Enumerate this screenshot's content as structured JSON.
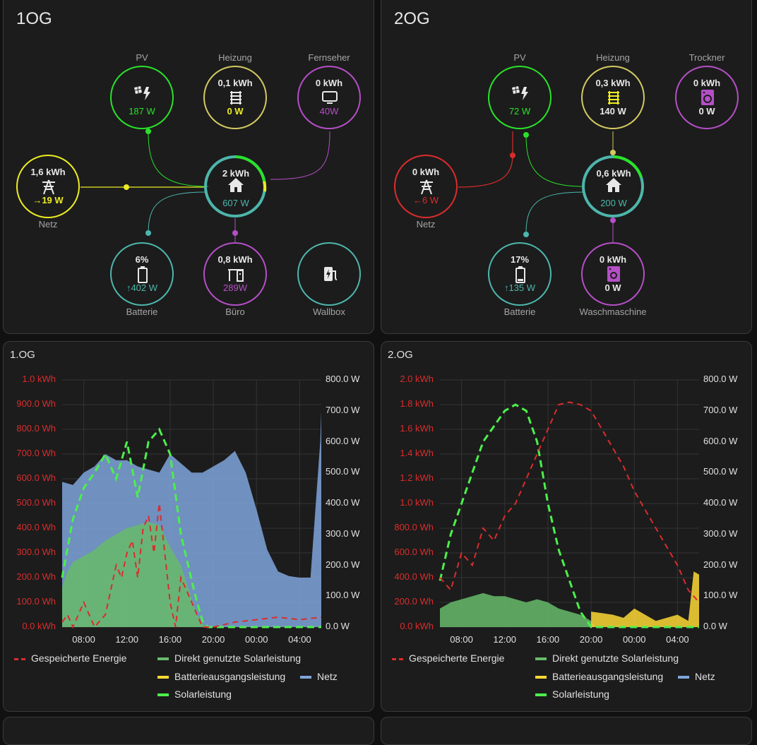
{
  "colors": {
    "pv": "#29e229",
    "grid": "#ecec23",
    "grid_import": "#db2c2c",
    "home": "#4db6ac",
    "battery": "#4db6ac",
    "heizung": "#d3c961",
    "device": "#b44fc6",
    "stored": "#db2c2c",
    "direct": "#66bb6a",
    "batt_out": "#fdd835",
    "netz": "#7fa5dc",
    "solar": "#4cef4c"
  },
  "og1": {
    "title": "1OG",
    "pv": {
      "label": "PV",
      "icon": "solar-panel-icon",
      "value": "187 W"
    },
    "heizung": {
      "label": "Heizung",
      "icon": "radiator-icon",
      "energy": "0,1 kWh",
      "power": "0 W"
    },
    "fernseher": {
      "label": "Fernseher",
      "icon": "tv-icon",
      "energy": "0 kWh",
      "power": "40W"
    },
    "netz": {
      "label": "Netz",
      "icon": "transmission-tower-icon",
      "energy": "1,6 kWh",
      "power": "→19 W"
    },
    "home": {
      "icon": "home-icon",
      "energy": "2 kWh",
      "power": "607 W"
    },
    "batterie": {
      "label": "Batterie",
      "icon": "battery-icon",
      "percent": "6%",
      "power": "↑402 W"
    },
    "buero": {
      "label": "Büro",
      "icon": "desk-icon",
      "energy": "0,8 kWh",
      "power": "289W"
    },
    "wallbox": {
      "label": "Wallbox",
      "icon": "ev-station-icon"
    }
  },
  "og2": {
    "title": "2OG",
    "pv": {
      "label": "PV",
      "icon": "solar-panel-icon",
      "value": "72 W"
    },
    "heizung": {
      "label": "Heizung",
      "icon": "radiator-icon",
      "energy": "0,3 kWh",
      "power": "140 W"
    },
    "trockner": {
      "label": "Trockner",
      "icon": "tumble-dryer-icon",
      "energy": "0 kWh",
      "power": "0 W"
    },
    "netz": {
      "label": "Netz",
      "icon": "transmission-tower-icon",
      "energy": "0 kWh",
      "power": "←6 W"
    },
    "home": {
      "icon": "home-icon",
      "energy": "0,6 kWh",
      "power": "200 W"
    },
    "batterie": {
      "label": "Batterie",
      "icon": "battery-icon",
      "percent": "17%",
      "power": "↑135 W"
    },
    "wasch": {
      "label": "Waschmaschine",
      "icon": "washing-machine-icon",
      "energy": "0 kWh",
      "power": "0 W"
    }
  },
  "legend": {
    "stored": "Gespeicherte Energie",
    "direct": "Direkt genutzte Solarleistung",
    "batt_out": "Batterieausgangsleistung",
    "netz": "Netz",
    "solar": "Solarleistung"
  },
  "chart_data": [
    {
      "title": "1.OG",
      "type": "area",
      "left_axis": {
        "unit": "kWh",
        "ylim": [
          0,
          1.0
        ],
        "ticks": [
          "0.0 kWh",
          "100.0 Wh",
          "200.0 Wh",
          "300.0 Wh",
          "400.0 Wh",
          "500.0 Wh",
          "600.0 Wh",
          "700.0 Wh",
          "800.0 Wh",
          "900.0 Wh",
          "1.0 kWh"
        ]
      },
      "right_axis": {
        "unit": "W",
        "ylim": [
          0,
          800
        ],
        "ticks": [
          "0.0 W",
          "100.0 W",
          "200.0 W",
          "300.0 W",
          "400.0 W",
          "500.0 W",
          "600.0 W",
          "700.0 W",
          "800.0 W"
        ]
      },
      "x_ticks": [
        "08:00",
        "12:00",
        "16:00",
        "20:00",
        "00:00",
        "04:00"
      ],
      "x_hours": [
        6,
        30
      ],
      "series": [
        {
          "name": "Netz",
          "type": "area",
          "axis": "right",
          "x": [
            6,
            7,
            8,
            9,
            10,
            11,
            12,
            13,
            14,
            15,
            16,
            17,
            18,
            19,
            20,
            21,
            22,
            23,
            24,
            25,
            26,
            27,
            28,
            29,
            29.9,
            30
          ],
          "values": [
            470,
            460,
            500,
            520,
            560,
            540,
            540,
            520,
            510,
            500,
            560,
            530,
            500,
            500,
            520,
            540,
            570,
            500,
            380,
            250,
            180,
            165,
            160,
            160,
            600,
            700
          ]
        },
        {
          "name": "Direkt genutzte Solarleistung",
          "type": "area",
          "axis": "right",
          "x": [
            6,
            6.5,
            7,
            8,
            9,
            10,
            11,
            12,
            13,
            14,
            15,
            16,
            17,
            18,
            18.5,
            19,
            19.3,
            30
          ],
          "values": [
            130,
            180,
            210,
            230,
            250,
            280,
            300,
            320,
            330,
            340,
            330,
            260,
            200,
            90,
            40,
            10,
            0,
            0
          ]
        },
        {
          "name": "Solarleistung",
          "type": "line",
          "axis": "right",
          "x": [
            6,
            7,
            8,
            9,
            10,
            11,
            12,
            13,
            14,
            15,
            16,
            17,
            18,
            18.5,
            19,
            19.5,
            30
          ],
          "values": [
            160,
            350,
            450,
            500,
            560,
            480,
            600,
            420,
            600,
            640,
            560,
            300,
            150,
            80,
            20,
            0,
            0
          ]
        },
        {
          "name": "Gespeicherte Energie",
          "type": "line",
          "axis": "left",
          "x": [
            6,
            6.5,
            7,
            8,
            9,
            10,
            11,
            11.5,
            12,
            12.5,
            13,
            13.5,
            14,
            14.5,
            15,
            15.5,
            16,
            16.5,
            17,
            17.5,
            18,
            18.5,
            19,
            20,
            22,
            24,
            26,
            28,
            30
          ],
          "values": [
            0.02,
            0.05,
            0.0,
            0.1,
            0.0,
            0.05,
            0.25,
            0.2,
            0.3,
            0.35,
            0.2,
            0.4,
            0.45,
            0.3,
            0.5,
            0.3,
            0.1,
            0.0,
            0.2,
            0.15,
            0.1,
            0.05,
            0.0,
            0.0,
            0.02,
            0.03,
            0.04,
            0.03,
            0.04
          ]
        }
      ]
    },
    {
      "title": "2.OG",
      "type": "area",
      "left_axis": {
        "unit": "kWh",
        "ylim": [
          0,
          2.0
        ],
        "ticks": [
          "0.0 kWh",
          "200.0 Wh",
          "400.0 Wh",
          "600.0 Wh",
          "800.0 Wh",
          "1.0 kWh",
          "1.2 kWh",
          "1.4 kWh",
          "1.6 kWh",
          "1.8 kWh",
          "2.0 kWh"
        ]
      },
      "right_axis": {
        "unit": "W",
        "ylim": [
          0,
          800
        ],
        "ticks": [
          "0.0 W",
          "100.0 W",
          "200.0 W",
          "300.0 W",
          "400.0 W",
          "500.0 W",
          "600.0 W",
          "700.0 W",
          "800.0 W"
        ]
      },
      "x_ticks": [
        "08:00",
        "12:00",
        "16:00",
        "20:00",
        "00:00",
        "04:00"
      ],
      "x_hours": [
        6,
        30
      ],
      "series": [
        {
          "name": "Direkt genutzte Solarleistung",
          "type": "area",
          "axis": "right",
          "x": [
            6,
            7,
            8,
            9,
            10,
            11,
            12,
            13,
            14,
            15,
            16,
            17,
            18,
            19,
            20,
            20.3,
            30
          ],
          "values": [
            60,
            80,
            90,
            100,
            110,
            100,
            100,
            90,
            80,
            90,
            80,
            60,
            50,
            40,
            20,
            0,
            0
          ]
        },
        {
          "name": "Batterieausgangsleistung",
          "type": "area",
          "axis": "right",
          "x": [
            20,
            21,
            22,
            23,
            24,
            25,
            26,
            27,
            28,
            29,
            29.5,
            30
          ],
          "values": [
            50,
            45,
            40,
            30,
            60,
            40,
            20,
            30,
            40,
            20,
            180,
            170
          ]
        },
        {
          "name": "Solarleistung",
          "type": "line",
          "axis": "right",
          "x": [
            6,
            7,
            8,
            9,
            10,
            11,
            12,
            13,
            14,
            15,
            16,
            17,
            18,
            19,
            20,
            21,
            30
          ],
          "values": [
            150,
            300,
            400,
            500,
            600,
            650,
            700,
            720,
            700,
            600,
            400,
            250,
            150,
            50,
            0,
            0,
            0
          ]
        },
        {
          "name": "Gespeicherte Energie",
          "type": "line",
          "axis": "left",
          "x": [
            6,
            7,
            8,
            9,
            10,
            11,
            12,
            13,
            14,
            15,
            16,
            17,
            18,
            19,
            20,
            21,
            22,
            23,
            24,
            25,
            26,
            27,
            28,
            29,
            30
          ],
          "values": [
            0.4,
            0.3,
            0.6,
            0.5,
            0.8,
            0.7,
            0.9,
            1.0,
            1.2,
            1.4,
            1.6,
            1.8,
            1.82,
            1.8,
            1.75,
            1.6,
            1.45,
            1.3,
            1.1,
            0.95,
            0.8,
            0.65,
            0.5,
            0.3,
            0.2
          ]
        }
      ]
    }
  ]
}
